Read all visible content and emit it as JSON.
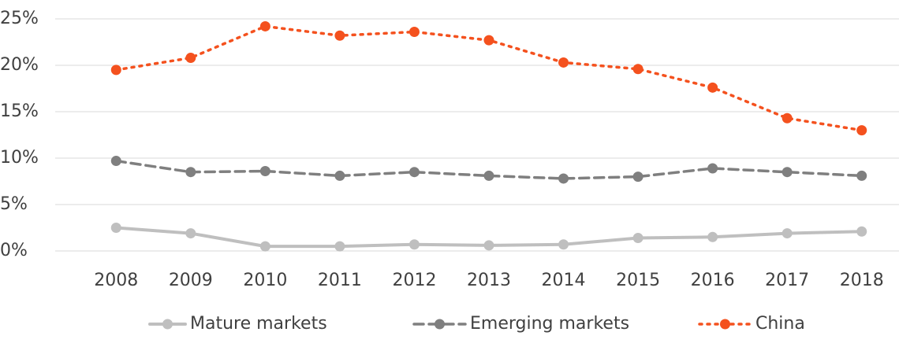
{
  "chart_data": {
    "type": "line",
    "categories": [
      "2008",
      "2009",
      "2010",
      "2011",
      "2012",
      "2013",
      "2014",
      "2015",
      "2016",
      "2017",
      "2018"
    ],
    "series": [
      {
        "name": "Mature markets",
        "color": "#bfbfbf",
        "dash": "solid",
        "values": [
          2.5,
          1.9,
          0.5,
          0.5,
          0.7,
          0.6,
          0.7,
          1.4,
          1.5,
          1.9,
          2.1
        ]
      },
      {
        "name": "Emerging markets",
        "color": "#7f7f7f",
        "dash": "dashed",
        "values": [
          9.7,
          8.5,
          8.6,
          8.1,
          8.5,
          8.1,
          7.8,
          8.0,
          8.9,
          8.5,
          8.1
        ]
      },
      {
        "name": "China",
        "color": "#f4511e",
        "dash": "dotted",
        "values": [
          19.5,
          20.8,
          24.2,
          23.2,
          23.6,
          22.7,
          20.3,
          19.6,
          17.6,
          14.3,
          13.0
        ]
      }
    ],
    "ylim": [
      0,
      25
    ],
    "yticks": [
      {
        "value": 0,
        "label": "0%"
      },
      {
        "value": 5,
        "label": "5%"
      },
      {
        "value": 10,
        "label": "10%"
      },
      {
        "value": 15,
        "label": "15%"
      },
      {
        "value": 20,
        "label": "20%"
      },
      {
        "value": 25,
        "label": "25%"
      }
    ],
    "grid": true,
    "legend": "bottom"
  }
}
